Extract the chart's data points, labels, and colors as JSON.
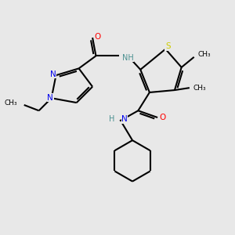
{
  "bg_color": "#e8e8e8",
  "bond_color": "#000000",
  "N_color": "#0000ee",
  "O_color": "#ff0000",
  "S_color": "#cccc00",
  "NH_color": "#4a9090",
  "line_width": 1.5,
  "figsize": [
    3.0,
    3.0
  ],
  "dpi": 100,
  "xlim": [
    0,
    10
  ],
  "ylim": [
    0,
    10
  ]
}
